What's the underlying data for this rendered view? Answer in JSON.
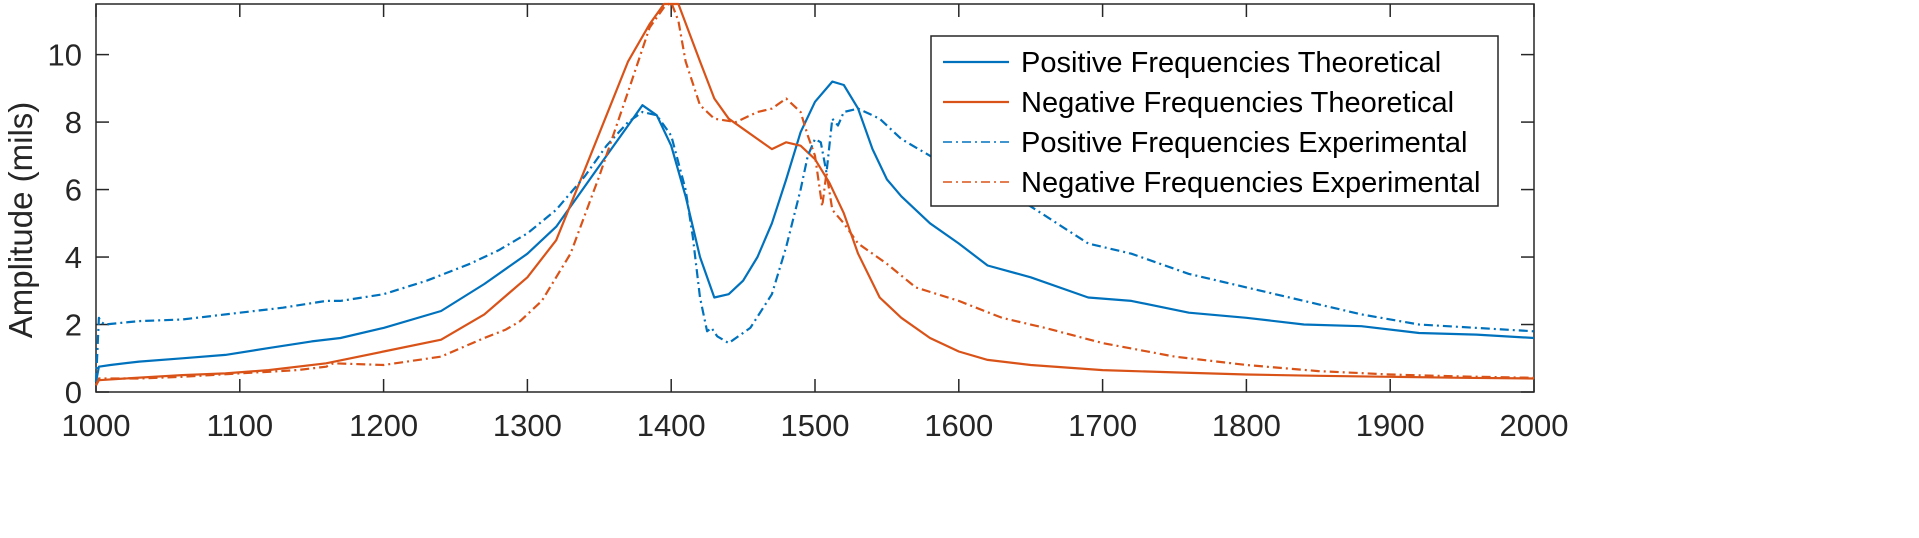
{
  "chart_data": {
    "type": "line",
    "title": "",
    "xlabel": "",
    "ylabel": "Amplitude (mils)",
    "xlim": [
      1000,
      2000
    ],
    "ylim": [
      0,
      11.5
    ],
    "xticks": [
      1000,
      1100,
      1200,
      1300,
      1400,
      1500,
      1600,
      1700,
      1800,
      1900,
      2000
    ],
    "yticks": [
      0,
      2,
      4,
      6,
      8,
      10
    ],
    "grid": false,
    "legend_position": "top-right",
    "series": [
      {
        "name": "Positive Frequencies Theoretical",
        "color": "#0072BD",
        "style": "solid",
        "x": [
          1000,
          1002,
          1010,
          1030,
          1060,
          1090,
          1120,
          1150,
          1170,
          1200,
          1240,
          1270,
          1300,
          1320,
          1340,
          1355,
          1370,
          1380,
          1390,
          1400,
          1410,
          1420,
          1430,
          1440,
          1450,
          1460,
          1470,
          1480,
          1490,
          1500,
          1512,
          1520,
          1530,
          1540,
          1550,
          1560,
          1580,
          1600,
          1620,
          1650,
          1690,
          1720,
          1760,
          1800,
          1840,
          1880,
          1920,
          1960,
          2000
        ],
        "y": [
          0.3,
          0.75,
          0.8,
          0.9,
          1.0,
          1.1,
          1.3,
          1.5,
          1.6,
          1.9,
          2.4,
          3.2,
          4.1,
          4.9,
          6.1,
          7.0,
          7.9,
          8.5,
          8.2,
          7.3,
          5.8,
          4.0,
          2.8,
          2.9,
          3.3,
          4.0,
          5.0,
          6.3,
          7.7,
          8.6,
          9.2,
          9.1,
          8.4,
          7.2,
          6.3,
          5.8,
          5.0,
          4.4,
          3.75,
          3.4,
          2.8,
          2.7,
          2.35,
          2.2,
          2.0,
          1.95,
          1.75,
          1.7,
          1.6
        ]
      },
      {
        "name": "Negative Frequencies Theoretical",
        "color": "#D95319",
        "style": "solid",
        "x": [
          1000,
          1002,
          1020,
          1060,
          1090,
          1120,
          1160,
          1200,
          1240,
          1270,
          1300,
          1320,
          1340,
          1355,
          1370,
          1385,
          1395,
          1405,
          1420,
          1430,
          1440,
          1450,
          1460,
          1470,
          1480,
          1490,
          1500,
          1510,
          1520,
          1530,
          1545,
          1560,
          1580,
          1600,
          1620,
          1650,
          1700,
          1750,
          1800,
          1850,
          1900,
          1950,
          2000
        ],
        "y": [
          0.2,
          0.35,
          0.4,
          0.5,
          0.55,
          0.65,
          0.85,
          1.2,
          1.55,
          2.3,
          3.4,
          4.5,
          6.6,
          8.2,
          9.8,
          10.9,
          11.5,
          11.5,
          9.8,
          8.7,
          8.1,
          7.8,
          7.5,
          7.2,
          7.4,
          7.3,
          6.9,
          6.2,
          5.3,
          4.1,
          2.8,
          2.2,
          1.6,
          1.2,
          0.95,
          0.8,
          0.65,
          0.58,
          0.52,
          0.48,
          0.45,
          0.42,
          0.4
        ]
      },
      {
        "name": "Positive Frequencies Experimental",
        "color": "#0072BD",
        "style": "dashdot",
        "x": [
          1000,
          1002,
          1003,
          1006,
          1030,
          1060,
          1100,
          1130,
          1160,
          1170,
          1200,
          1230,
          1260,
          1280,
          1300,
          1320,
          1340,
          1355,
          1370,
          1380,
          1390,
          1400,
          1410,
          1415,
          1420,
          1425,
          1428,
          1432,
          1440,
          1455,
          1470,
          1480,
          1490,
          1495,
          1500,
          1504,
          1508,
          1512,
          1516,
          1520,
          1530,
          1545,
          1560,
          1580,
          1600,
          1620,
          1650,
          1690,
          1720,
          1760,
          1800,
          1840,
          1880,
          1920,
          1960,
          2000
        ],
        "y": [
          0.3,
          2.2,
          2.1,
          2.0,
          2.1,
          2.15,
          2.35,
          2.5,
          2.7,
          2.7,
          2.9,
          3.3,
          3.8,
          4.2,
          4.7,
          5.4,
          6.4,
          7.3,
          8.0,
          8.3,
          8.2,
          7.6,
          6.0,
          4.6,
          2.8,
          1.8,
          1.9,
          1.65,
          1.45,
          1.9,
          2.9,
          4.3,
          6.0,
          7.0,
          7.5,
          7.4,
          6.5,
          8.1,
          7.9,
          8.3,
          8.4,
          8.1,
          7.5,
          7.0,
          6.5,
          6.1,
          5.5,
          4.4,
          4.1,
          3.5,
          3.1,
          2.7,
          2.3,
          2.0,
          1.9,
          1.8
        ]
      },
      {
        "name": "Negative Frequencies Experimental",
        "color": "#D95319",
        "style": "dashdot",
        "x": [
          1000,
          1002,
          1030,
          1060,
          1100,
          1140,
          1160,
          1165,
          1200,
          1240,
          1270,
          1285,
          1295,
          1310,
          1330,
          1350,
          1370,
          1385,
          1395,
          1400,
          1405,
          1410,
          1420,
          1430,
          1445,
          1460,
          1470,
          1480,
          1490,
          1495,
          1500,
          1505,
          1508,
          1512,
          1516,
          1520,
          1530,
          1550,
          1570,
          1600,
          1630,
          1660,
          1700,
          1750,
          1800,
          1850,
          1900,
          1950,
          2000
        ],
        "y": [
          0.2,
          0.4,
          0.4,
          0.45,
          0.55,
          0.65,
          0.75,
          0.85,
          0.8,
          1.05,
          1.6,
          1.85,
          2.1,
          2.7,
          4.1,
          6.4,
          8.9,
          10.8,
          11.4,
          11.55,
          11.0,
          9.8,
          8.5,
          8.1,
          8.0,
          8.3,
          8.4,
          8.7,
          8.3,
          7.6,
          7.0,
          5.5,
          6.5,
          5.4,
          5.2,
          5.0,
          4.4,
          3.8,
          3.1,
          2.7,
          2.2,
          1.9,
          1.45,
          1.05,
          0.8,
          0.62,
          0.52,
          0.46,
          0.42
        ]
      }
    ]
  }
}
